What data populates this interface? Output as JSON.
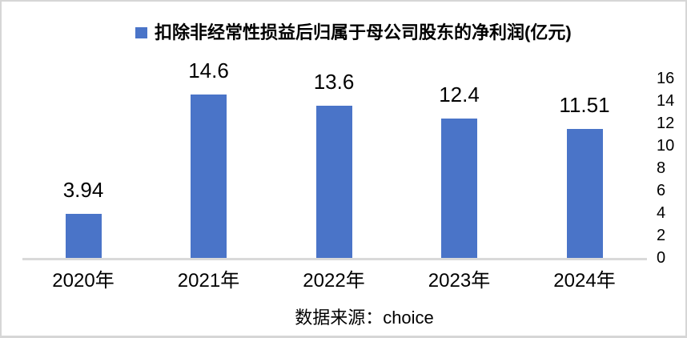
{
  "frame": {
    "background": "#ffffff",
    "border_color": "#d6d6d6"
  },
  "legend": {
    "marker_color": "#4a74c8",
    "label": "扣除非经常性损益后归属于母公司股东的净利润(亿元)"
  },
  "source": {
    "text": "数据来源：choice"
  },
  "chart_data": {
    "type": "bar",
    "title": "扣除非经常性损益后归属于母公司股东的净利润(亿元)",
    "categories": [
      "2020年",
      "2021年",
      "2022年",
      "2023年",
      "2024年"
    ],
    "values": [
      3.94,
      14.6,
      13.6,
      12.4,
      11.51
    ],
    "data_labels": [
      "3.94",
      "14.6",
      "13.6",
      "12.4",
      "11.51"
    ],
    "xlabel": "",
    "ylabel": "",
    "ylim": [
      0,
      16
    ],
    "yticks": [
      0,
      2,
      4,
      6,
      8,
      10,
      12,
      14,
      16
    ],
    "yaxis_side": "right",
    "legend_position": "top",
    "grid": false,
    "bar_color": "#4a74c8",
    "axis_line_color": "#d9d9d9",
    "text_color": "#000000"
  }
}
